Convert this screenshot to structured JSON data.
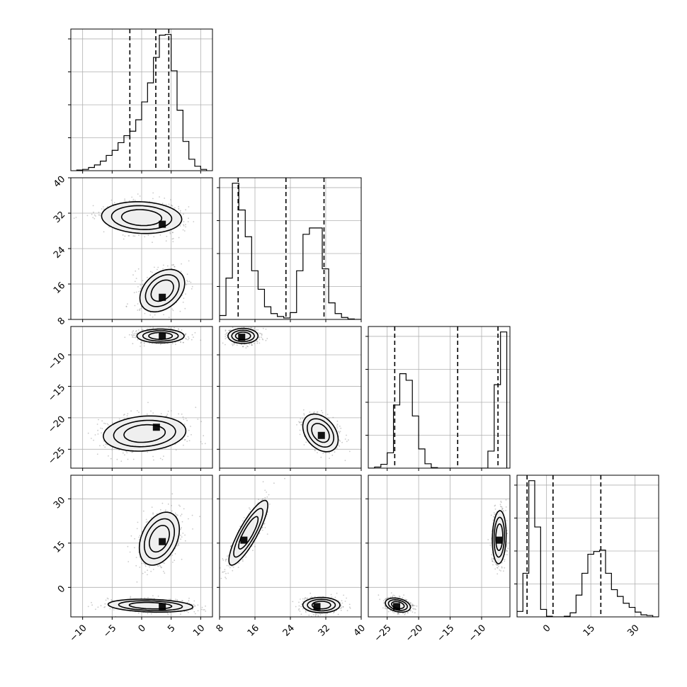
{
  "chart_data": {
    "type": "corner",
    "grid": true,
    "parameters": [
      {
        "range": [
          -12,
          12
        ],
        "ticks": [
          -10,
          -5,
          0,
          5,
          10
        ],
        "tick_labels": [
          "−10",
          "−5",
          "0",
          "5",
          "10"
        ],
        "quantiles": [
          -2.0,
          2.4,
          4.6
        ]
      },
      {
        "range": [
          8,
          40
        ],
        "ticks": [
          8,
          16,
          24,
          32,
          40
        ],
        "tick_labels": [
          "8",
          "16",
          "24",
          "32",
          "40"
        ],
        "quantiles": [
          12.2,
          23.0,
          31.6
        ]
      },
      {
        "range": [
          -28,
          -5.5
        ],
        "ticks": [
          -25,
          -20,
          -15,
          -10
        ],
        "tick_labels": [
          "−25",
          "−20",
          "−15",
          "−10"
        ],
        "quantiles": [
          -23.8,
          -13.8,
          -7.4
        ]
      },
      {
        "range": [
          -10,
          38
        ],
        "ticks": [
          0,
          15,
          30
        ],
        "tick_labels": [
          "0",
          "15",
          "30"
        ],
        "quantiles": [
          -6.6,
          2.2,
          18.4
        ]
      }
    ],
    "histograms": [
      {
        "param": 0,
        "bin_edges": [
          -11,
          -10,
          -9,
          -8,
          -7,
          -6,
          -5,
          -4,
          -3,
          -2,
          -1,
          0,
          1,
          2,
          3,
          4,
          5,
          6,
          7,
          8,
          9,
          10,
          11
        ],
        "counts": [
          1,
          2,
          5,
          9,
          15,
          24,
          32,
          44,
          55,
          62,
          80,
          108,
          138,
          178,
          213,
          214,
          157,
          95,
          46,
          18,
          7,
          2
        ]
      },
      {
        "param": 1,
        "bin_edges": [
          8,
          9.45,
          10.9,
          12.35,
          13.8,
          15.25,
          16.7,
          18.15,
          19.6,
          21.05,
          22.5,
          23.95,
          25.4,
          26.85,
          28.3,
          29.75,
          31.2,
          32.65,
          34.1,
          35.55,
          37,
          38.45,
          39.9
        ],
        "counts": [
          8,
          85,
          280,
          225,
          170,
          100,
          62,
          26,
          12,
          6,
          3,
          14,
          100,
          175,
          188,
          188,
          104,
          34,
          12,
          4,
          1,
          0
        ]
      },
      {
        "param": 2,
        "bin_edges": [
          -28,
          -27,
          -26,
          -25,
          -24,
          -23,
          -22,
          -21,
          -20,
          -19,
          -18,
          -17,
          -16,
          -15,
          -14,
          -13,
          -12,
          -11,
          -10,
          -9,
          -8,
          -7,
          -6
        ],
        "counts": [
          0,
          2,
          7,
          28,
          115,
          172,
          160,
          95,
          35,
          8,
          1,
          0,
          0,
          0,
          0,
          0,
          0,
          0,
          0,
          31,
          152,
          248
        ]
      },
      {
        "param": 3,
        "bin_edges": [
          -10,
          -8,
          -6,
          -4,
          -2,
          0,
          2,
          4,
          6,
          8,
          10,
          12,
          14,
          16,
          18,
          20,
          22,
          24,
          26,
          28,
          30,
          32,
          34,
          36,
          38
        ],
        "counts": [
          8,
          64,
          200,
          132,
          11,
          1,
          0,
          0,
          1,
          6,
          32,
          64,
          92,
          96,
          98,
          64,
          40,
          30,
          20,
          14,
          7,
          3,
          2,
          0
        ]
      }
    ],
    "scatter_panels": [
      {
        "x_param": 0,
        "y_param": 1,
        "modes": [
          {
            "cx": 0,
            "cy": 31,
            "sx": 3.4,
            "sy": 1.8,
            "rho": -0.1,
            "n": 650,
            "peak": [
              3.5,
              29.5
            ]
          },
          {
            "cx": 3.5,
            "cy": 14.5,
            "sx": 1.9,
            "sy": 2.4,
            "rho": 0.35,
            "n": 650,
            "peak": [
              3.5,
              13
            ]
          }
        ]
      },
      {
        "x_param": 0,
        "y_param": 2,
        "modes": [
          {
            "cx": 3.2,
            "cy": -7.0,
            "sx": 2.0,
            "sy": 0.55,
            "rho": 0,
            "n": 650,
            "peak": [
              3.5,
              -7.0
            ]
          },
          {
            "cx": 0.5,
            "cy": -22.5,
            "sx": 3.5,
            "sy": 1.4,
            "rho": 0.15,
            "n": 650,
            "peak": [
              2.5,
              -21.5
            ]
          }
        ]
      },
      {
        "x_param": 0,
        "y_param": 3,
        "modes": [
          {
            "cx": 3.0,
            "cy": 16.5,
            "sx": 1.7,
            "sy": 4.5,
            "rho": 0.35,
            "n": 650,
            "peak": [
              3.5,
              15.5
            ]
          },
          {
            "cx": 1.5,
            "cy": -6.2,
            "sx": 3.6,
            "sy": 1.1,
            "rho": -0.2,
            "n": 650,
            "peak": [
              3.5,
              -6.5
            ]
          }
        ]
      },
      {
        "x_param": 1,
        "y_param": 2,
        "modes": [
          {
            "cx": 13.3,
            "cy": -7.0,
            "sx": 1.7,
            "sy": 0.6,
            "rho": 0,
            "n": 650,
            "peak": [
              13,
              -7.2
            ]
          },
          {
            "cx": 30.8,
            "cy": -22.4,
            "sx": 2.0,
            "sy": 1.5,
            "rho": -0.35,
            "n": 650,
            "peak": [
              31,
              -22.8
            ]
          }
        ]
      },
      {
        "x_param": 1,
        "y_param": 3,
        "modes": [
          {
            "cx": 14.5,
            "cy": 18.5,
            "sx": 2.2,
            "sy": 5.5,
            "rho": 0.85,
            "n": 650,
            "peak": [
              13.5,
              16
            ]
          },
          {
            "cx": 31.0,
            "cy": -6.0,
            "sx": 2.1,
            "sy": 1.3,
            "rho": 0,
            "n": 650,
            "peak": [
              30,
              -6.5
            ]
          }
        ]
      },
      {
        "x_param": 2,
        "y_param": 3,
        "modes": [
          {
            "cx": -23.3,
            "cy": -6.0,
            "sx": 1.0,
            "sy": 1.2,
            "rho": -0.3,
            "n": 650,
            "peak": [
              -23.5,
              -6.5
            ]
          },
          {
            "cx": -7.2,
            "cy": 17.0,
            "sx": 0.55,
            "sy": 4.5,
            "rho": 0.1,
            "n": 650,
            "peak": [
              -7.2,
              16
            ]
          }
        ]
      }
    ]
  }
}
